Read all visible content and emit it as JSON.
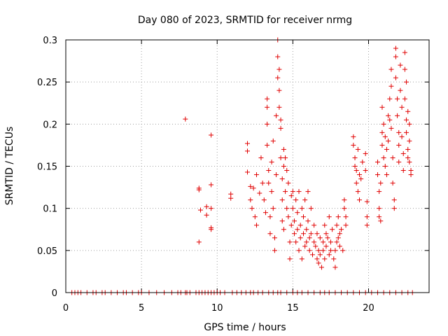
{
  "chart_data": {
    "type": "scatter",
    "title": "Day 080 of 2023, SRMTID for receiver nrmg",
    "xlabel": "GPS time / hours",
    "ylabel": "SRMTID / TECUs",
    "xlim": [
      0,
      24
    ],
    "ylim": [
      0,
      0.3
    ],
    "xticks": [
      0,
      5,
      10,
      15,
      20
    ],
    "yticks": [
      0,
      0.05,
      0.1,
      0.15,
      0.2,
      0.25,
      0.3
    ],
    "xtick_labels": [
      "0",
      "5",
      "10",
      "15",
      "20"
    ],
    "ytick_labels": [
      "0",
      "0.05",
      "0.1",
      "0.15",
      "0.2",
      "0.25",
      "0.3"
    ],
    "grid": true,
    "marker": "+",
    "color": "#e00000",
    "series": [
      {
        "name": "SRMTID",
        "points": [
          [
            0.4,
            0
          ],
          [
            0.6,
            0
          ],
          [
            0.8,
            0
          ],
          [
            1.0,
            0
          ],
          [
            1.4,
            0
          ],
          [
            1.8,
            0
          ],
          [
            2.0,
            0
          ],
          [
            2.4,
            0
          ],
          [
            2.6,
            0
          ],
          [
            3.0,
            0
          ],
          [
            3.4,
            0
          ],
          [
            3.8,
            0
          ],
          [
            4.0,
            0
          ],
          [
            4.4,
            0
          ],
          [
            4.8,
            0
          ],
          [
            5.0,
            0
          ],
          [
            5.5,
            0
          ],
          [
            6.0,
            0
          ],
          [
            6.5,
            0
          ],
          [
            7.0,
            0
          ],
          [
            7.4,
            0
          ],
          [
            7.6,
            0
          ],
          [
            7.9,
            0
          ],
          [
            8.0,
            0
          ],
          [
            8.2,
            0
          ],
          [
            8.6,
            0
          ],
          [
            8.8,
            0
          ],
          [
            9.0,
            0
          ],
          [
            9.2,
            0
          ],
          [
            9.4,
            0
          ],
          [
            9.6,
            0
          ],
          [
            9.8,
            0
          ],
          [
            10.0,
            0
          ],
          [
            10.2,
            0
          ],
          [
            10.5,
            0
          ],
          [
            11.0,
            0
          ],
          [
            11.3,
            0
          ],
          [
            11.6,
            0
          ],
          [
            11.9,
            0
          ],
          [
            12.2,
            0
          ],
          [
            12.4,
            0
          ],
          [
            12.7,
            0
          ],
          [
            13.0,
            0
          ],
          [
            13.4,
            0
          ],
          [
            13.7,
            0
          ],
          [
            14.0,
            0
          ],
          [
            14.2,
            0
          ],
          [
            14.6,
            0
          ],
          [
            15.0,
            0
          ],
          [
            15.3,
            0
          ],
          [
            15.6,
            0
          ],
          [
            16.0,
            0
          ],
          [
            16.4,
            0
          ],
          [
            16.8,
            0
          ],
          [
            17.1,
            0
          ],
          [
            17.4,
            0
          ],
          [
            17.8,
            0
          ],
          [
            18.2,
            0
          ],
          [
            18.6,
            0
          ],
          [
            19.0,
            0
          ],
          [
            19.4,
            0
          ],
          [
            19.8,
            0
          ],
          [
            20.2,
            0
          ],
          [
            20.6,
            0
          ],
          [
            21.0,
            0
          ],
          [
            21.4,
            0
          ],
          [
            21.8,
            0
          ],
          [
            22.2,
            0
          ],
          [
            22.6,
            0
          ],
          [
            22.9,
            0
          ],
          [
            7.9,
            0.206
          ],
          [
            8.8,
            0.124
          ],
          [
            8.8,
            0.122
          ],
          [
            8.9,
            0.098
          ],
          [
            8.8,
            0.06
          ],
          [
            9.3,
            0.102
          ],
          [
            9.3,
            0.092
          ],
          [
            9.6,
            0.187
          ],
          [
            9.6,
            0.128
          ],
          [
            9.6,
            0.077
          ],
          [
            9.6,
            0.075
          ],
          [
            9.6,
            0.1
          ],
          [
            10.9,
            0.117
          ],
          [
            10.9,
            0.112
          ],
          [
            12.0,
            0.177
          ],
          [
            12.0,
            0.168
          ],
          [
            12.0,
            0.143
          ],
          [
            12.2,
            0.126
          ],
          [
            12.2,
            0.11
          ],
          [
            12.3,
            0.1
          ],
          [
            12.4,
            0.124
          ],
          [
            12.5,
            0.09
          ],
          [
            12.6,
            0.14
          ],
          [
            12.6,
            0.08
          ],
          [
            12.8,
            0.118
          ],
          [
            12.9,
            0.16
          ],
          [
            13.0,
            0.13
          ],
          [
            13.1,
            0.11
          ],
          [
            13.2,
            0.095
          ],
          [
            13.3,
            0.23
          ],
          [
            13.3,
            0.22
          ],
          [
            13.3,
            0.2
          ],
          [
            13.3,
            0.175
          ],
          [
            13.4,
            0.145
          ],
          [
            13.4,
            0.13
          ],
          [
            13.5,
            0.09
          ],
          [
            13.5,
            0.07
          ],
          [
            13.6,
            0.155
          ],
          [
            13.6,
            0.12
          ],
          [
            13.7,
            0.18
          ],
          [
            13.7,
            0.1
          ],
          [
            13.8,
            0.065
          ],
          [
            13.8,
            0.05
          ],
          [
            13.9,
            0.21
          ],
          [
            13.9,
            0.14
          ],
          [
            14.0,
            0.3
          ],
          [
            14.0,
            0.28
          ],
          [
            14.0,
            0.255
          ],
          [
            14.1,
            0.265
          ],
          [
            14.1,
            0.24
          ],
          [
            14.1,
            0.22
          ],
          [
            14.2,
            0.205
          ],
          [
            14.2,
            0.195
          ],
          [
            14.2,
            0.16
          ],
          [
            14.3,
            0.135
          ],
          [
            14.3,
            0.11
          ],
          [
            14.3,
            0.085
          ],
          [
            14.4,
            0.17
          ],
          [
            14.4,
            0.15
          ],
          [
            14.4,
            0.075
          ],
          [
            14.5,
            0.16
          ],
          [
            14.5,
            0.12
          ],
          [
            14.6,
            0.145
          ],
          [
            14.6,
            0.1
          ],
          [
            14.7,
            0.13
          ],
          [
            14.7,
            0.09
          ],
          [
            14.8,
            0.06
          ],
          [
            14.8,
            0.04
          ],
          [
            14.9,
            0.115
          ],
          [
            14.9,
            0.08
          ],
          [
            15.0,
            0.12
          ],
          [
            15.0,
            0.1
          ],
          [
            15.1,
            0.085
          ],
          [
            15.1,
            0.07
          ],
          [
            15.2,
            0.11
          ],
          [
            15.2,
            0.06
          ],
          [
            15.3,
            0.095
          ],
          [
            15.3,
            0.075
          ],
          [
            15.4,
            0.12
          ],
          [
            15.4,
            0.05
          ],
          [
            15.5,
            0.08
          ],
          [
            15.5,
            0.065
          ],
          [
            15.6,
            0.1
          ],
          [
            15.6,
            0.04
          ],
          [
            15.7,
            0.09
          ],
          [
            15.7,
            0.07
          ],
          [
            15.8,
            0.055
          ],
          [
            15.8,
            0.11
          ],
          [
            15.9,
            0.075
          ],
          [
            15.9,
            0.06
          ],
          [
            16.0,
            0.12
          ],
          [
            16.0,
            0.085
          ],
          [
            16.1,
            0.065
          ],
          [
            16.1,
            0.05
          ],
          [
            16.2,
            0.1
          ],
          [
            16.2,
            0.07
          ],
          [
            16.3,
            0.045
          ],
          [
            16.4,
            0.08
          ],
          [
            16.4,
            0.06
          ],
          [
            16.5,
            0.055
          ],
          [
            16.6,
            0.04
          ],
          [
            16.6,
            0.07
          ],
          [
            16.7,
            0.05
          ],
          [
            16.7,
            0.035
          ],
          [
            16.8,
            0.065
          ],
          [
            16.8,
            0.045
          ],
          [
            16.9,
            0.03
          ],
          [
            17.0,
            0.06
          ],
          [
            17.0,
            0.05
          ],
          [
            17.1,
            0.08
          ],
          [
            17.1,
            0.04
          ],
          [
            17.2,
            0.07
          ],
          [
            17.2,
            0.055
          ],
          [
            17.3,
            0.065
          ],
          [
            17.4,
            0.045
          ],
          [
            17.4,
            0.09
          ],
          [
            17.5,
            0.06
          ],
          [
            17.5,
            0.05
          ],
          [
            17.6,
            0.075
          ],
          [
            17.7,
            0.04
          ],
          [
            17.8,
            0.05
          ],
          [
            17.8,
            0.03
          ],
          [
            17.9,
            0.08
          ],
          [
            17.9,
            0.06
          ],
          [
            18.0,
            0.09
          ],
          [
            18.0,
            0.065
          ],
          [
            18.1,
            0.07
          ],
          [
            18.1,
            0.055
          ],
          [
            18.2,
            0.075
          ],
          [
            18.3,
            0.05
          ],
          [
            18.4,
            0.11
          ],
          [
            18.4,
            0.1
          ],
          [
            18.5,
            0.09
          ],
          [
            18.5,
            0.08
          ],
          [
            19.0,
            0.185
          ],
          [
            19.0,
            0.175
          ],
          [
            19.1,
            0.16
          ],
          [
            19.1,
            0.15
          ],
          [
            19.2,
            0.145
          ],
          [
            19.2,
            0.13
          ],
          [
            19.3,
            0.17
          ],
          [
            19.3,
            0.12
          ],
          [
            19.4,
            0.14
          ],
          [
            19.4,
            0.11
          ],
          [
            19.5,
            0.135
          ],
          [
            19.6,
            0.155
          ],
          [
            19.8,
            0.165
          ],
          [
            19.8,
            0.145
          ],
          [
            19.9,
            0.08
          ],
          [
            19.9,
            0.09
          ],
          [
            19.9,
            0.108
          ],
          [
            20.6,
            0.155
          ],
          [
            20.6,
            0.14
          ],
          [
            20.7,
            0.12
          ],
          [
            20.7,
            0.1
          ],
          [
            20.7,
            0.09
          ],
          [
            20.8,
            0.085
          ],
          [
            20.8,
            0.13
          ],
          [
            20.9,
            0.22
          ],
          [
            20.9,
            0.19
          ],
          [
            20.9,
            0.175
          ],
          [
            21.0,
            0.2
          ],
          [
            21.0,
            0.16
          ],
          [
            21.1,
            0.185
          ],
          [
            21.1,
            0.15
          ],
          [
            21.2,
            0.17
          ],
          [
            21.2,
            0.14
          ],
          [
            21.3,
            0.21
          ],
          [
            21.3,
            0.18
          ],
          [
            21.4,
            0.23
          ],
          [
            21.4,
            0.205
          ],
          [
            21.5,
            0.265
          ],
          [
            21.5,
            0.245
          ],
          [
            21.5,
            0.195
          ],
          [
            21.6,
            0.16
          ],
          [
            21.6,
            0.13
          ],
          [
            21.7,
            0.1
          ],
          [
            21.7,
            0.11
          ],
          [
            21.8,
            0.29
          ],
          [
            21.8,
            0.28
          ],
          [
            21.8,
            0.255
          ],
          [
            21.9,
            0.23
          ],
          [
            21.9,
            0.21
          ],
          [
            22.0,
            0.19
          ],
          [
            22.0,
            0.175
          ],
          [
            22.0,
            0.155
          ],
          [
            22.1,
            0.27
          ],
          [
            22.1,
            0.24
          ],
          [
            22.2,
            0.22
          ],
          [
            22.2,
            0.185
          ],
          [
            22.3,
            0.165
          ],
          [
            22.3,
            0.145
          ],
          [
            22.4,
            0.285
          ],
          [
            22.4,
            0.265
          ],
          [
            22.4,
            0.23
          ],
          [
            22.5,
            0.25
          ],
          [
            22.5,
            0.205
          ],
          [
            22.5,
            0.19
          ],
          [
            22.6,
            0.215
          ],
          [
            22.6,
            0.17
          ],
          [
            22.6,
            0.16
          ],
          [
            22.7,
            0.2
          ],
          [
            22.7,
            0.18
          ],
          [
            22.7,
            0.155
          ],
          [
            22.8,
            0.145
          ],
          [
            22.8,
            0.14
          ]
        ]
      }
    ]
  }
}
